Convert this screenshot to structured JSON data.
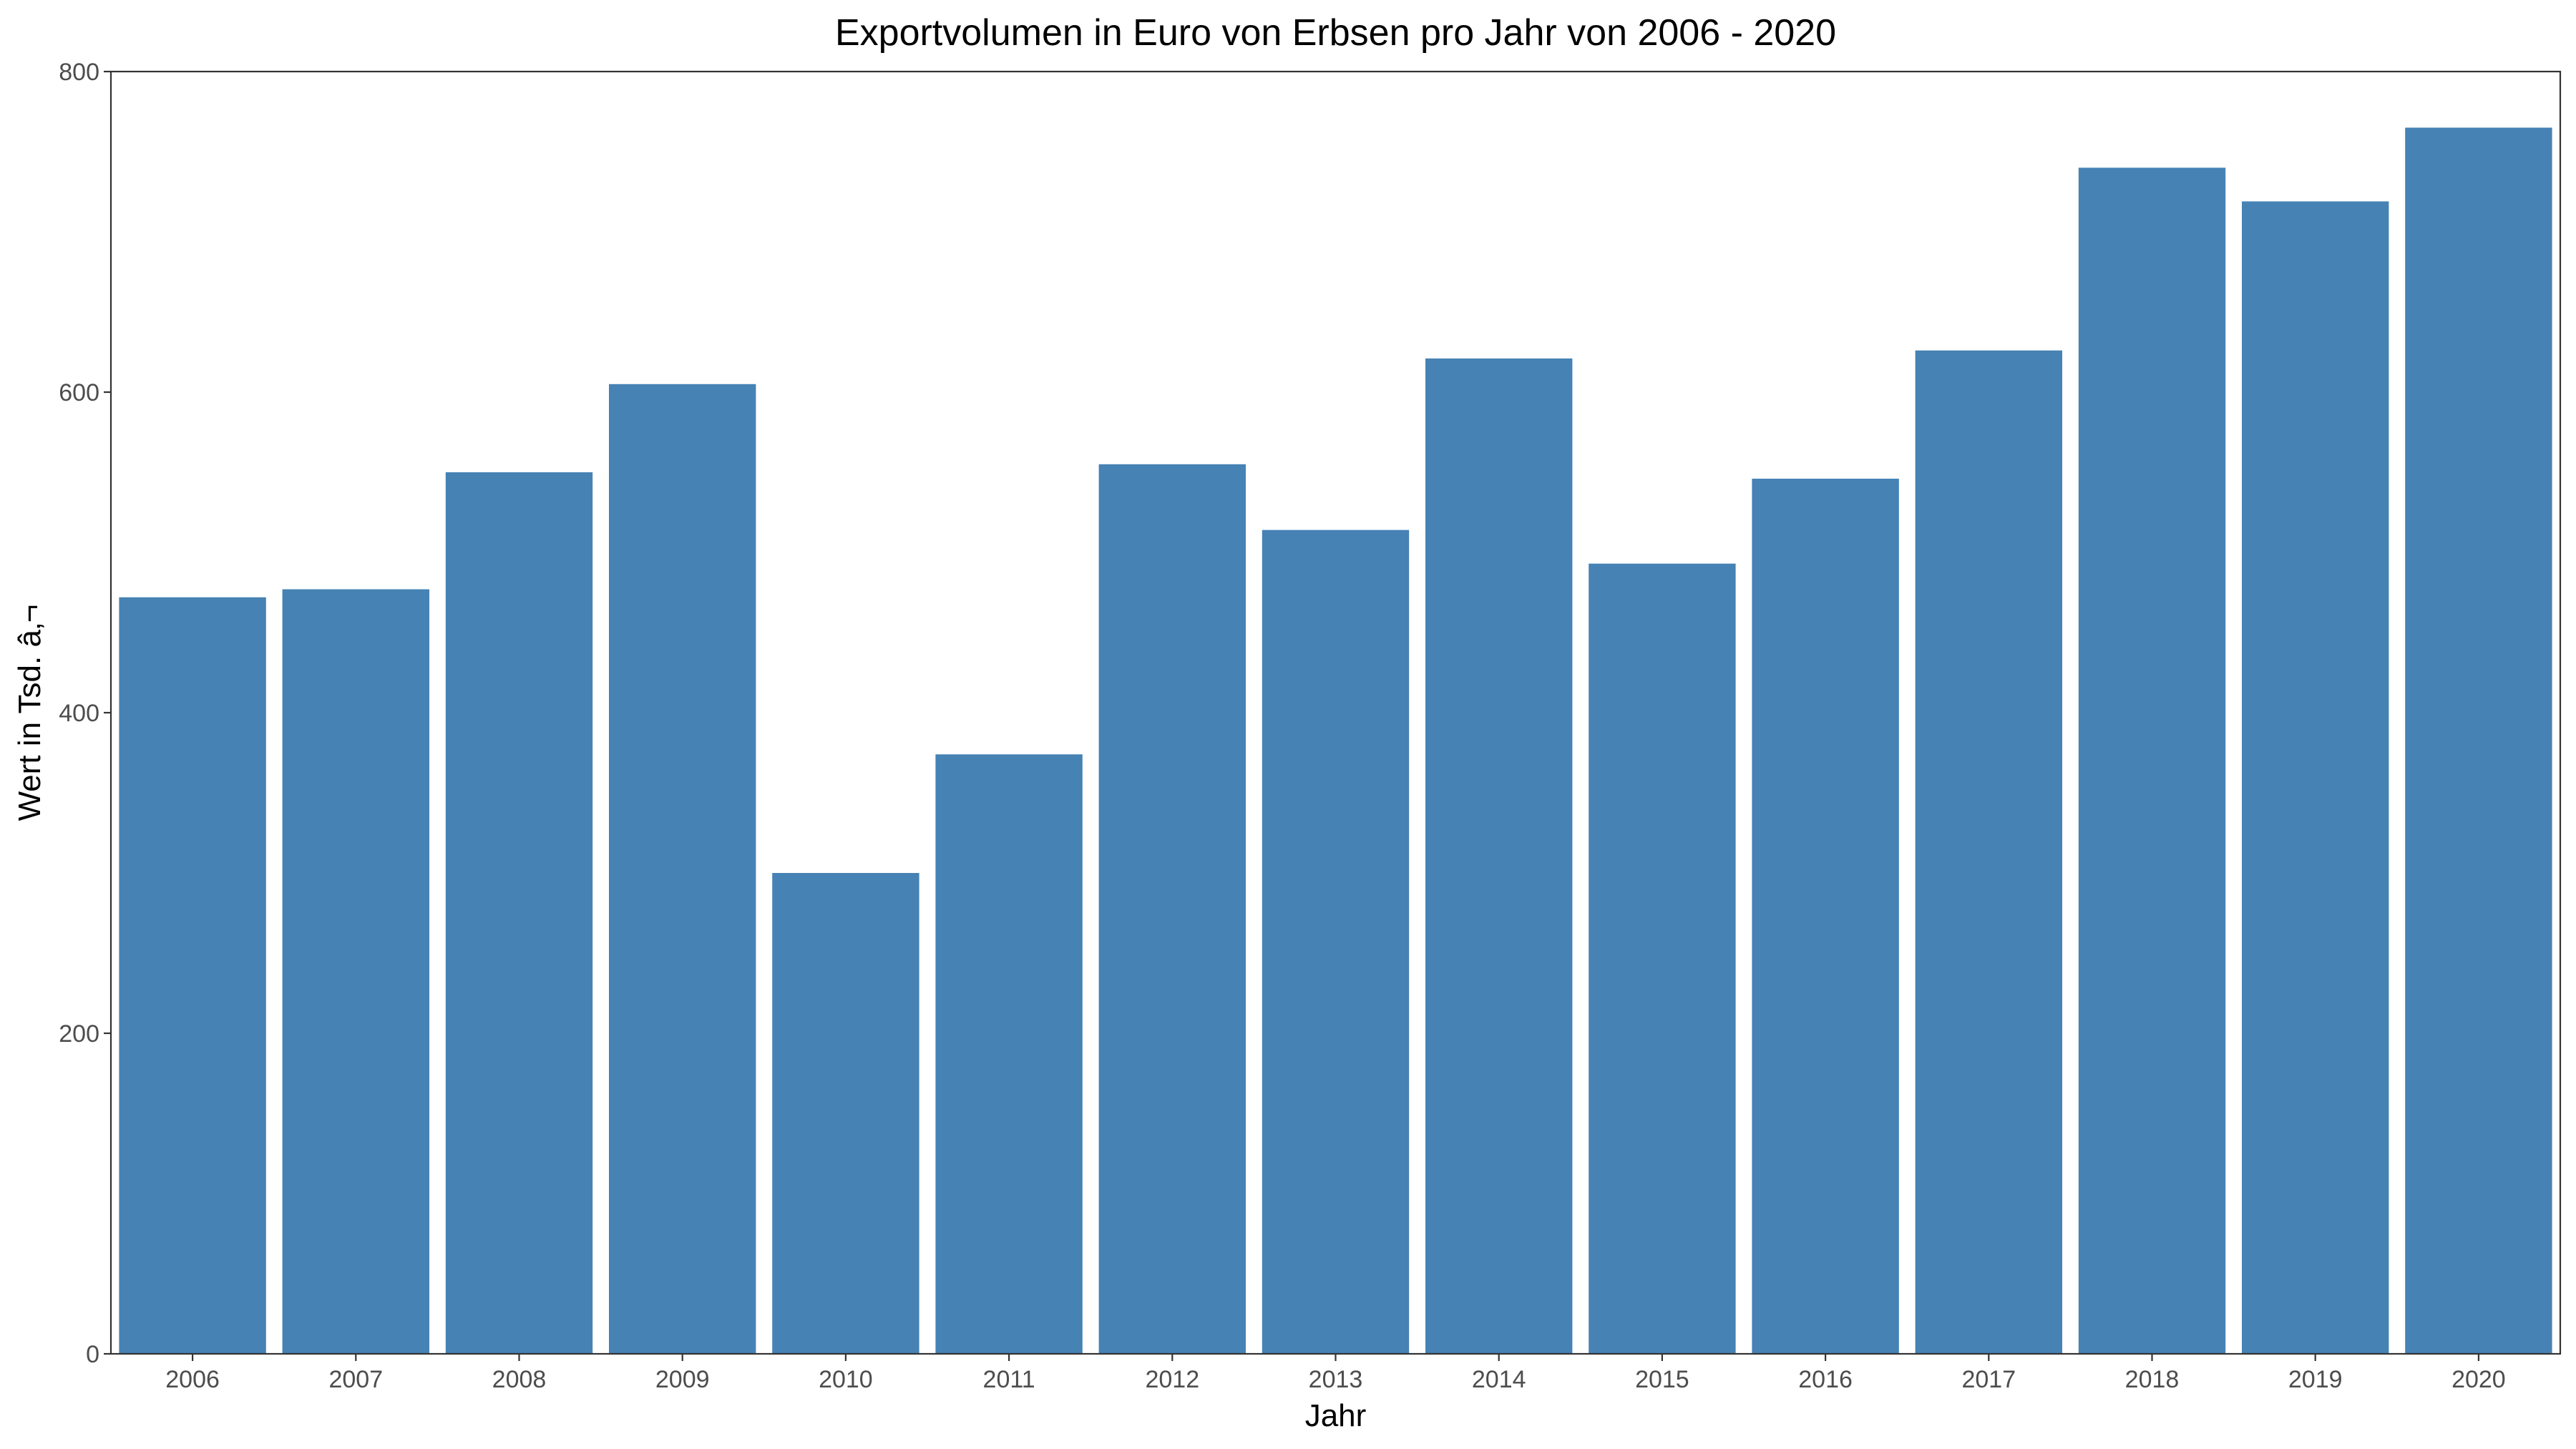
{
  "chart_data": {
    "type": "bar",
    "title": "Exportvolumen in Euro von Erbsen pro Jahr von 2006 - 2020",
    "xlabel": "Jahr",
    "ylabel": "Wert in Tsd. â‚¬",
    "categories": [
      "2006",
      "2007",
      "2008",
      "2009",
      "2010",
      "2011",
      "2012",
      "2013",
      "2014",
      "2015",
      "2016",
      "2017",
      "2018",
      "2019",
      "2020"
    ],
    "values": [
      472,
      477,
      550,
      605,
      300,
      374,
      555,
      514,
      621,
      493,
      546,
      626,
      740,
      719,
      765
    ],
    "ylim": [
      0,
      800
    ],
    "yticks": [
      "0",
      "200",
      "400",
      "600",
      "800"
    ],
    "grid": false,
    "legend": "none",
    "bar_color": "#4682B4"
  }
}
